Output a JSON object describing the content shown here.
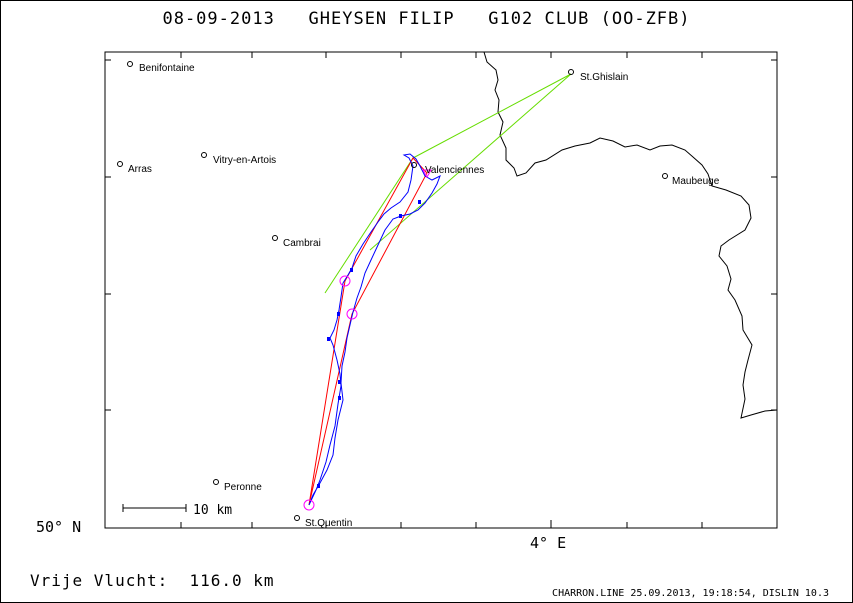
{
  "title": "08-09-2013   GHEYSEN FILIP   G102 CLUB (OO-ZFB)",
  "distance_label": "Vrije Vlucht:  116.0 km",
  "credit": "CHARRON.LINE 25.09.2013, 19:18:54, DISLIN 10.3",
  "axes": {
    "lat_label": "50° N",
    "lon_label": "4° E"
  },
  "scale_bar": {
    "label": "10 km",
    "km": 10
  },
  "places": [
    {
      "name": "Benifontaine",
      "lon": 2.82,
      "lat": 50.49
    },
    {
      "name": "Arras",
      "lon": 2.78,
      "lat": 50.29
    },
    {
      "name": "Vitry-en-Artois",
      "lon": 2.97,
      "lat": 50.3
    },
    {
      "name": "Cambrai",
      "lon": 3.24,
      "lat": 50.18
    },
    {
      "name": "Valenciennes",
      "lon": 3.52,
      "lat": 50.28
    },
    {
      "name": "St.Ghislain",
      "lon": 3.82,
      "lat": 50.45
    },
    {
      "name": "Maubeuge",
      "lon": 3.97,
      "lat": 50.28
    },
    {
      "name": "Peronne",
      "lon": 2.93,
      "lat": 49.93
    },
    {
      "name": "St.Quentin",
      "lon": 3.29,
      "lat": 49.85
    }
  ],
  "colors": {
    "track": "#0000ff",
    "route": "#ff0000",
    "sector": "#66dd00",
    "turnpoint": "#ff00ff",
    "border": "#000000"
  }
}
